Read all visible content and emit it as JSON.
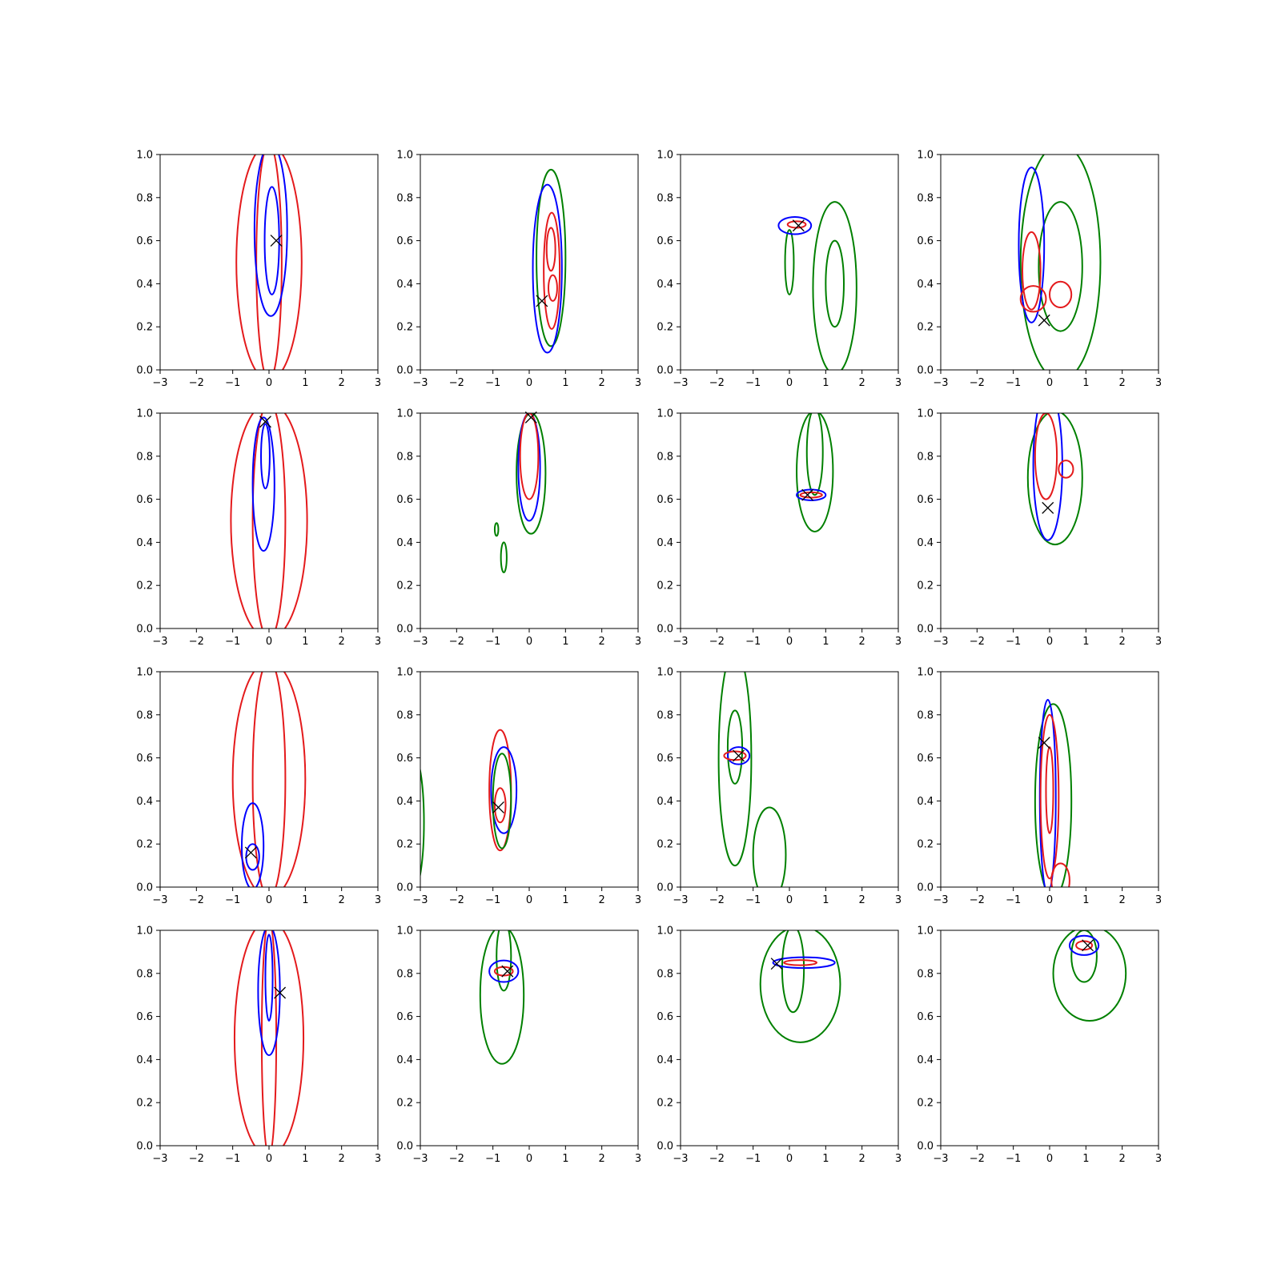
{
  "chart_data": {
    "type": "contour",
    "layout": {
      "rows": 4,
      "cols": 4
    },
    "xlim": [
      -3,
      3
    ],
    "ylim": [
      0,
      1
    ],
    "xticks": [
      -3,
      -2,
      -1,
      0,
      1,
      2,
      3
    ],
    "yticks": [
      0.0,
      0.2,
      0.4,
      0.6,
      0.8,
      1.0
    ],
    "xtick_labels": [
      "−3",
      "−2",
      "−1",
      "0",
      "1",
      "2",
      "3"
    ],
    "ytick_labels": [
      "0.0",
      "0.2",
      "0.4",
      "0.6",
      "0.8",
      "1.0"
    ],
    "grid": false,
    "colors": {
      "red": "#e41a1c",
      "blue": "#0000ff",
      "green": "#008000",
      "marker": "#000000"
    },
    "panels": [
      {
        "marker": [
          0.2,
          0.6
        ],
        "contours": [
          {
            "color": "red",
            "cx": 0.0,
            "cy": 0.5,
            "rx": 0.9,
            "ry": 0.55
          },
          {
            "color": "red",
            "cx": 0.0,
            "cy": 0.5,
            "rx": 0.35,
            "ry": 0.55
          },
          {
            "color": "blue",
            "cx": 0.05,
            "cy": 0.65,
            "rx": 0.45,
            "ry": 0.4
          },
          {
            "color": "blue",
            "cx": 0.08,
            "cy": 0.6,
            "rx": 0.2,
            "ry": 0.25
          }
        ]
      },
      {
        "marker": [
          0.35,
          0.32
        ],
        "contours": [
          {
            "color": "green",
            "cx": 0.6,
            "cy": 0.52,
            "rx": 0.4,
            "ry": 0.41
          },
          {
            "color": "blue",
            "cx": 0.5,
            "cy": 0.47,
            "rx": 0.4,
            "ry": 0.39
          },
          {
            "color": "red",
            "cx": 0.62,
            "cy": 0.46,
            "rx": 0.22,
            "ry": 0.27
          },
          {
            "color": "red",
            "cx": 0.65,
            "cy": 0.38,
            "rx": 0.12,
            "ry": 0.06
          },
          {
            "color": "red",
            "cx": 0.6,
            "cy": 0.56,
            "rx": 0.12,
            "ry": 0.1
          }
        ]
      },
      {
        "marker": [
          0.25,
          0.67
        ],
        "contours": [
          {
            "color": "green",
            "cx": 1.25,
            "cy": 0.38,
            "rx": 0.6,
            "ry": 0.4
          },
          {
            "color": "green",
            "cx": 1.25,
            "cy": 0.4,
            "rx": 0.25,
            "ry": 0.2
          },
          {
            "color": "green",
            "cx": 0.0,
            "cy": 0.5,
            "rx": 0.12,
            "ry": 0.15
          },
          {
            "color": "blue",
            "cx": 0.15,
            "cy": 0.67,
            "rx": 0.45,
            "ry": 0.04
          },
          {
            "color": "red",
            "cx": 0.2,
            "cy": 0.675,
            "rx": 0.25,
            "ry": 0.015
          }
        ]
      },
      {
        "marker": [
          -0.15,
          0.23
        ],
        "contours": [
          {
            "color": "green",
            "cx": 0.3,
            "cy": 0.5,
            "rx": 1.1,
            "ry": 0.55
          },
          {
            "color": "green",
            "cx": 0.3,
            "cy": 0.48,
            "rx": 0.6,
            "ry": 0.3
          },
          {
            "color": "blue",
            "cx": -0.5,
            "cy": 0.58,
            "rx": 0.35,
            "ry": 0.36
          },
          {
            "color": "red",
            "cx": -0.5,
            "cy": 0.46,
            "rx": 0.25,
            "ry": 0.18
          },
          {
            "color": "red",
            "cx": 0.3,
            "cy": 0.35,
            "rx": 0.3,
            "ry": 0.06
          },
          {
            "color": "red",
            "cx": -0.45,
            "cy": 0.33,
            "rx": 0.35,
            "ry": 0.06
          }
        ]
      },
      {
        "marker": [
          -0.1,
          0.96
        ],
        "contours": [
          {
            "color": "red",
            "cx": 0.0,
            "cy": 0.5,
            "rx": 1.05,
            "ry": 0.55
          },
          {
            "color": "red",
            "cx": 0.0,
            "cy": 0.5,
            "rx": 0.45,
            "ry": 0.55
          },
          {
            "color": "blue",
            "cx": -0.15,
            "cy": 0.67,
            "rx": 0.3,
            "ry": 0.31
          },
          {
            "color": "blue",
            "cx": -0.1,
            "cy": 0.8,
            "rx": 0.12,
            "ry": 0.15
          }
        ]
      },
      {
        "marker": [
          0.05,
          0.98
        ],
        "contours": [
          {
            "color": "green",
            "cx": 0.05,
            "cy": 0.72,
            "rx": 0.4,
            "ry": 0.28
          },
          {
            "color": "blue",
            "cx": 0.0,
            "cy": 0.75,
            "rx": 0.3,
            "ry": 0.25
          },
          {
            "color": "red",
            "cx": 0.0,
            "cy": 0.8,
            "rx": 0.25,
            "ry": 0.2
          },
          {
            "color": "green",
            "cx": -0.9,
            "cy": 0.46,
            "rx": 0.05,
            "ry": 0.03
          },
          {
            "color": "green",
            "cx": -0.7,
            "cy": 0.33,
            "rx": 0.08,
            "ry": 0.07
          }
        ]
      },
      {
        "marker": [
          0.5,
          0.62
        ],
        "contours": [
          {
            "color": "green",
            "cx": 0.7,
            "cy": 0.73,
            "rx": 0.5,
            "ry": 0.28
          },
          {
            "color": "green",
            "cx": 0.7,
            "cy": 0.82,
            "rx": 0.22,
            "ry": 0.2
          },
          {
            "color": "blue",
            "cx": 0.6,
            "cy": 0.62,
            "rx": 0.4,
            "ry": 0.025
          },
          {
            "color": "red",
            "cx": 0.6,
            "cy": 0.62,
            "rx": 0.3,
            "ry": 0.012
          }
        ]
      },
      {
        "marker": [
          -0.05,
          0.56
        ],
        "contours": [
          {
            "color": "green",
            "cx": 0.15,
            "cy": 0.7,
            "rx": 0.75,
            "ry": 0.31
          },
          {
            "color": "blue",
            "cx": -0.05,
            "cy": 0.76,
            "rx": 0.4,
            "ry": 0.35
          },
          {
            "color": "red",
            "cx": -0.1,
            "cy": 0.8,
            "rx": 0.3,
            "ry": 0.2
          },
          {
            "color": "red",
            "cx": 0.45,
            "cy": 0.74,
            "rx": 0.2,
            "ry": 0.04
          }
        ]
      },
      {
        "marker": [
          -0.5,
          0.16
        ],
        "contours": [
          {
            "color": "red",
            "cx": 0.0,
            "cy": 0.5,
            "rx": 1.0,
            "ry": 0.55
          },
          {
            "color": "red",
            "cx": 0.0,
            "cy": 0.5,
            "rx": 0.45,
            "ry": 0.55
          },
          {
            "color": "blue",
            "cx": -0.45,
            "cy": 0.19,
            "rx": 0.3,
            "ry": 0.2
          },
          {
            "color": "blue",
            "cx": -0.45,
            "cy": 0.14,
            "rx": 0.18,
            "ry": 0.06
          }
        ]
      },
      {
        "marker": [
          -0.85,
          0.37
        ],
        "contours": [
          {
            "color": "green",
            "cx": -3.2,
            "cy": 0.3,
            "rx": 0.3,
            "ry": 0.32
          },
          {
            "color": "red",
            "cx": -0.8,
            "cy": 0.45,
            "rx": 0.3,
            "ry": 0.28
          },
          {
            "color": "blue",
            "cx": -0.7,
            "cy": 0.45,
            "rx": 0.35,
            "ry": 0.2
          },
          {
            "color": "green",
            "cx": -0.75,
            "cy": 0.4,
            "rx": 0.25,
            "ry": 0.22
          },
          {
            "color": "red",
            "cx": -0.8,
            "cy": 0.38,
            "rx": 0.15,
            "ry": 0.08
          }
        ]
      },
      {
        "marker": [
          -1.4,
          0.61
        ],
        "contours": [
          {
            "color": "green",
            "cx": -1.5,
            "cy": 0.6,
            "rx": 0.45,
            "ry": 0.5
          },
          {
            "color": "green",
            "cx": -1.5,
            "cy": 0.65,
            "rx": 0.2,
            "ry": 0.17
          },
          {
            "color": "green",
            "cx": -0.55,
            "cy": 0.15,
            "rx": 0.45,
            "ry": 0.22
          },
          {
            "color": "blue",
            "cx": -1.4,
            "cy": 0.61,
            "rx": 0.3,
            "ry": 0.04
          },
          {
            "color": "red",
            "cx": -1.5,
            "cy": 0.61,
            "rx": 0.3,
            "ry": 0.02
          }
        ]
      },
      {
        "marker": [
          -0.15,
          0.67
        ],
        "contours": [
          {
            "color": "green",
            "cx": 0.1,
            "cy": 0.4,
            "rx": 0.5,
            "ry": 0.45
          },
          {
            "color": "blue",
            "cx": -0.05,
            "cy": 0.42,
            "rx": 0.22,
            "ry": 0.45
          },
          {
            "color": "red",
            "cx": 0.0,
            "cy": 0.42,
            "rx": 0.25,
            "ry": 0.38
          },
          {
            "color": "red",
            "cx": 0.0,
            "cy": 0.45,
            "rx": 0.1,
            "ry": 0.2
          },
          {
            "color": "red",
            "cx": 0.3,
            "cy": 0.03,
            "rx": 0.25,
            "ry": 0.08
          }
        ]
      },
      {
        "marker": [
          0.3,
          0.71
        ],
        "contours": [
          {
            "color": "red",
            "cx": 0.0,
            "cy": 0.5,
            "rx": 0.95,
            "ry": 0.55
          },
          {
            "color": "red",
            "cx": 0.0,
            "cy": 0.5,
            "rx": 0.2,
            "ry": 0.55
          },
          {
            "color": "blue",
            "cx": 0.0,
            "cy": 0.72,
            "rx": 0.3,
            "ry": 0.3
          },
          {
            "color": "blue",
            "cx": 0.0,
            "cy": 0.78,
            "rx": 0.1,
            "ry": 0.2
          }
        ]
      },
      {
        "marker": [
          -0.6,
          0.81
        ],
        "contours": [
          {
            "color": "green",
            "cx": -0.75,
            "cy": 0.7,
            "rx": 0.6,
            "ry": 0.32
          },
          {
            "color": "green",
            "cx": -0.7,
            "cy": 0.88,
            "rx": 0.2,
            "ry": 0.16
          },
          {
            "color": "blue",
            "cx": -0.7,
            "cy": 0.81,
            "rx": 0.4,
            "ry": 0.05
          },
          {
            "color": "red",
            "cx": -0.7,
            "cy": 0.81,
            "rx": 0.25,
            "ry": 0.02
          }
        ]
      },
      {
        "marker": [
          -0.35,
          0.845
        ],
        "contours": [
          {
            "color": "green",
            "cx": 0.3,
            "cy": 0.75,
            "rx": 1.1,
            "ry": 0.27
          },
          {
            "color": "green",
            "cx": 0.1,
            "cy": 0.82,
            "rx": 0.3,
            "ry": 0.2
          },
          {
            "color": "blue",
            "cx": 0.4,
            "cy": 0.85,
            "rx": 0.85,
            "ry": 0.025
          },
          {
            "color": "red",
            "cx": 0.3,
            "cy": 0.85,
            "rx": 0.45,
            "ry": 0.012
          }
        ]
      },
      {
        "marker": [
          1.05,
          0.93
        ],
        "contours": [
          {
            "color": "green",
            "cx": 1.1,
            "cy": 0.8,
            "rx": 1.0,
            "ry": 0.22
          },
          {
            "color": "green",
            "cx": 0.95,
            "cy": 0.88,
            "rx": 0.35,
            "ry": 0.12
          },
          {
            "color": "blue",
            "cx": 0.95,
            "cy": 0.93,
            "rx": 0.4,
            "ry": 0.045
          },
          {
            "color": "red",
            "cx": 0.95,
            "cy": 0.93,
            "rx": 0.22,
            "ry": 0.02
          }
        ]
      }
    ]
  }
}
